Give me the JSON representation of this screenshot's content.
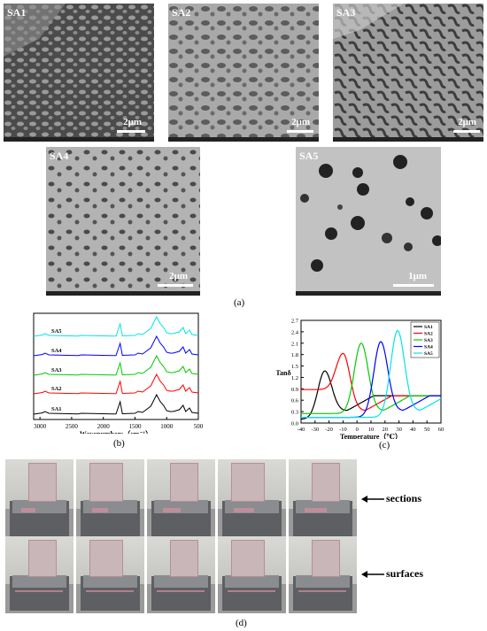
{
  "tem_panels": [
    {
      "label": "SA1",
      "scale": "2μm"
    },
    {
      "label": "SA2",
      "scale": "2μm"
    },
    {
      "label": "SA3",
      "scale": "2μm"
    },
    {
      "label": "SA4",
      "scale": "2μm"
    },
    {
      "label": "SA5",
      "scale": "1μm"
    }
  ],
  "captions": {
    "a": "(a)",
    "b": "(b)",
    "c": "(c)",
    "d": "(d)"
  },
  "chart_data": [
    {
      "type": "line",
      "xlabel": "Wavenumbers（cm⁻¹）",
      "xlim": [
        3100,
        500
      ],
      "x_ticks": [
        "3000",
        "2500",
        "2000",
        "1500",
        "1000",
        "500"
      ],
      "series": [
        {
          "name": "SA1",
          "color": "#000000"
        },
        {
          "name": "SA2",
          "color": "#ff0000"
        },
        {
          "name": "SA3",
          "color": "#00cc00"
        },
        {
          "name": "SA4",
          "color": "#0000ff"
        },
        {
          "name": "SA5",
          "color": "#00e5e5"
        }
      ]
    },
    {
      "type": "line",
      "ylabel": "Tanδ",
      "xlabel": "Temperature（℃）",
      "xlim": [
        -40,
        60
      ],
      "ylim": [
        0,
        2.7
      ],
      "x_ticks": [
        "-40",
        "-30",
        "-20",
        "-10",
        "0",
        "10",
        "20",
        "30",
        "40",
        "50",
        "60"
      ],
      "y_ticks": [
        "0.0",
        "0.3",
        "0.6",
        "0.9",
        "1.2",
        "1.5",
        "1.8",
        "2.1",
        "2.4",
        "2.7"
      ],
      "legend_position": "top-right",
      "series": [
        {
          "name": "SA1",
          "color": "#000000",
          "peak_x": -23,
          "peak_y": 1.37,
          "start": 0.1,
          "end": 0.72
        },
        {
          "name": "SA2",
          "color": "#ff0000",
          "peak_x": -10,
          "peak_y": 1.83,
          "start": 0.88,
          "end": 0.72
        },
        {
          "name": "SA3",
          "color": "#00cc00",
          "peak_x": 3,
          "peak_y": 2.1,
          "start": 0.25,
          "end": 0.72
        },
        {
          "name": "SA4",
          "color": "#0000ff",
          "peak_x": 17,
          "peak_y": 2.14,
          "start": 0.15,
          "end": 0.72
        },
        {
          "name": "SA5",
          "color": "#00e5e5",
          "peak_x": 29,
          "peak_y": 2.43,
          "start": 0.15,
          "end": 0.72
        }
      ]
    }
  ],
  "photo_labels": {
    "sections": "sections",
    "surfaces": "surfaces"
  }
}
